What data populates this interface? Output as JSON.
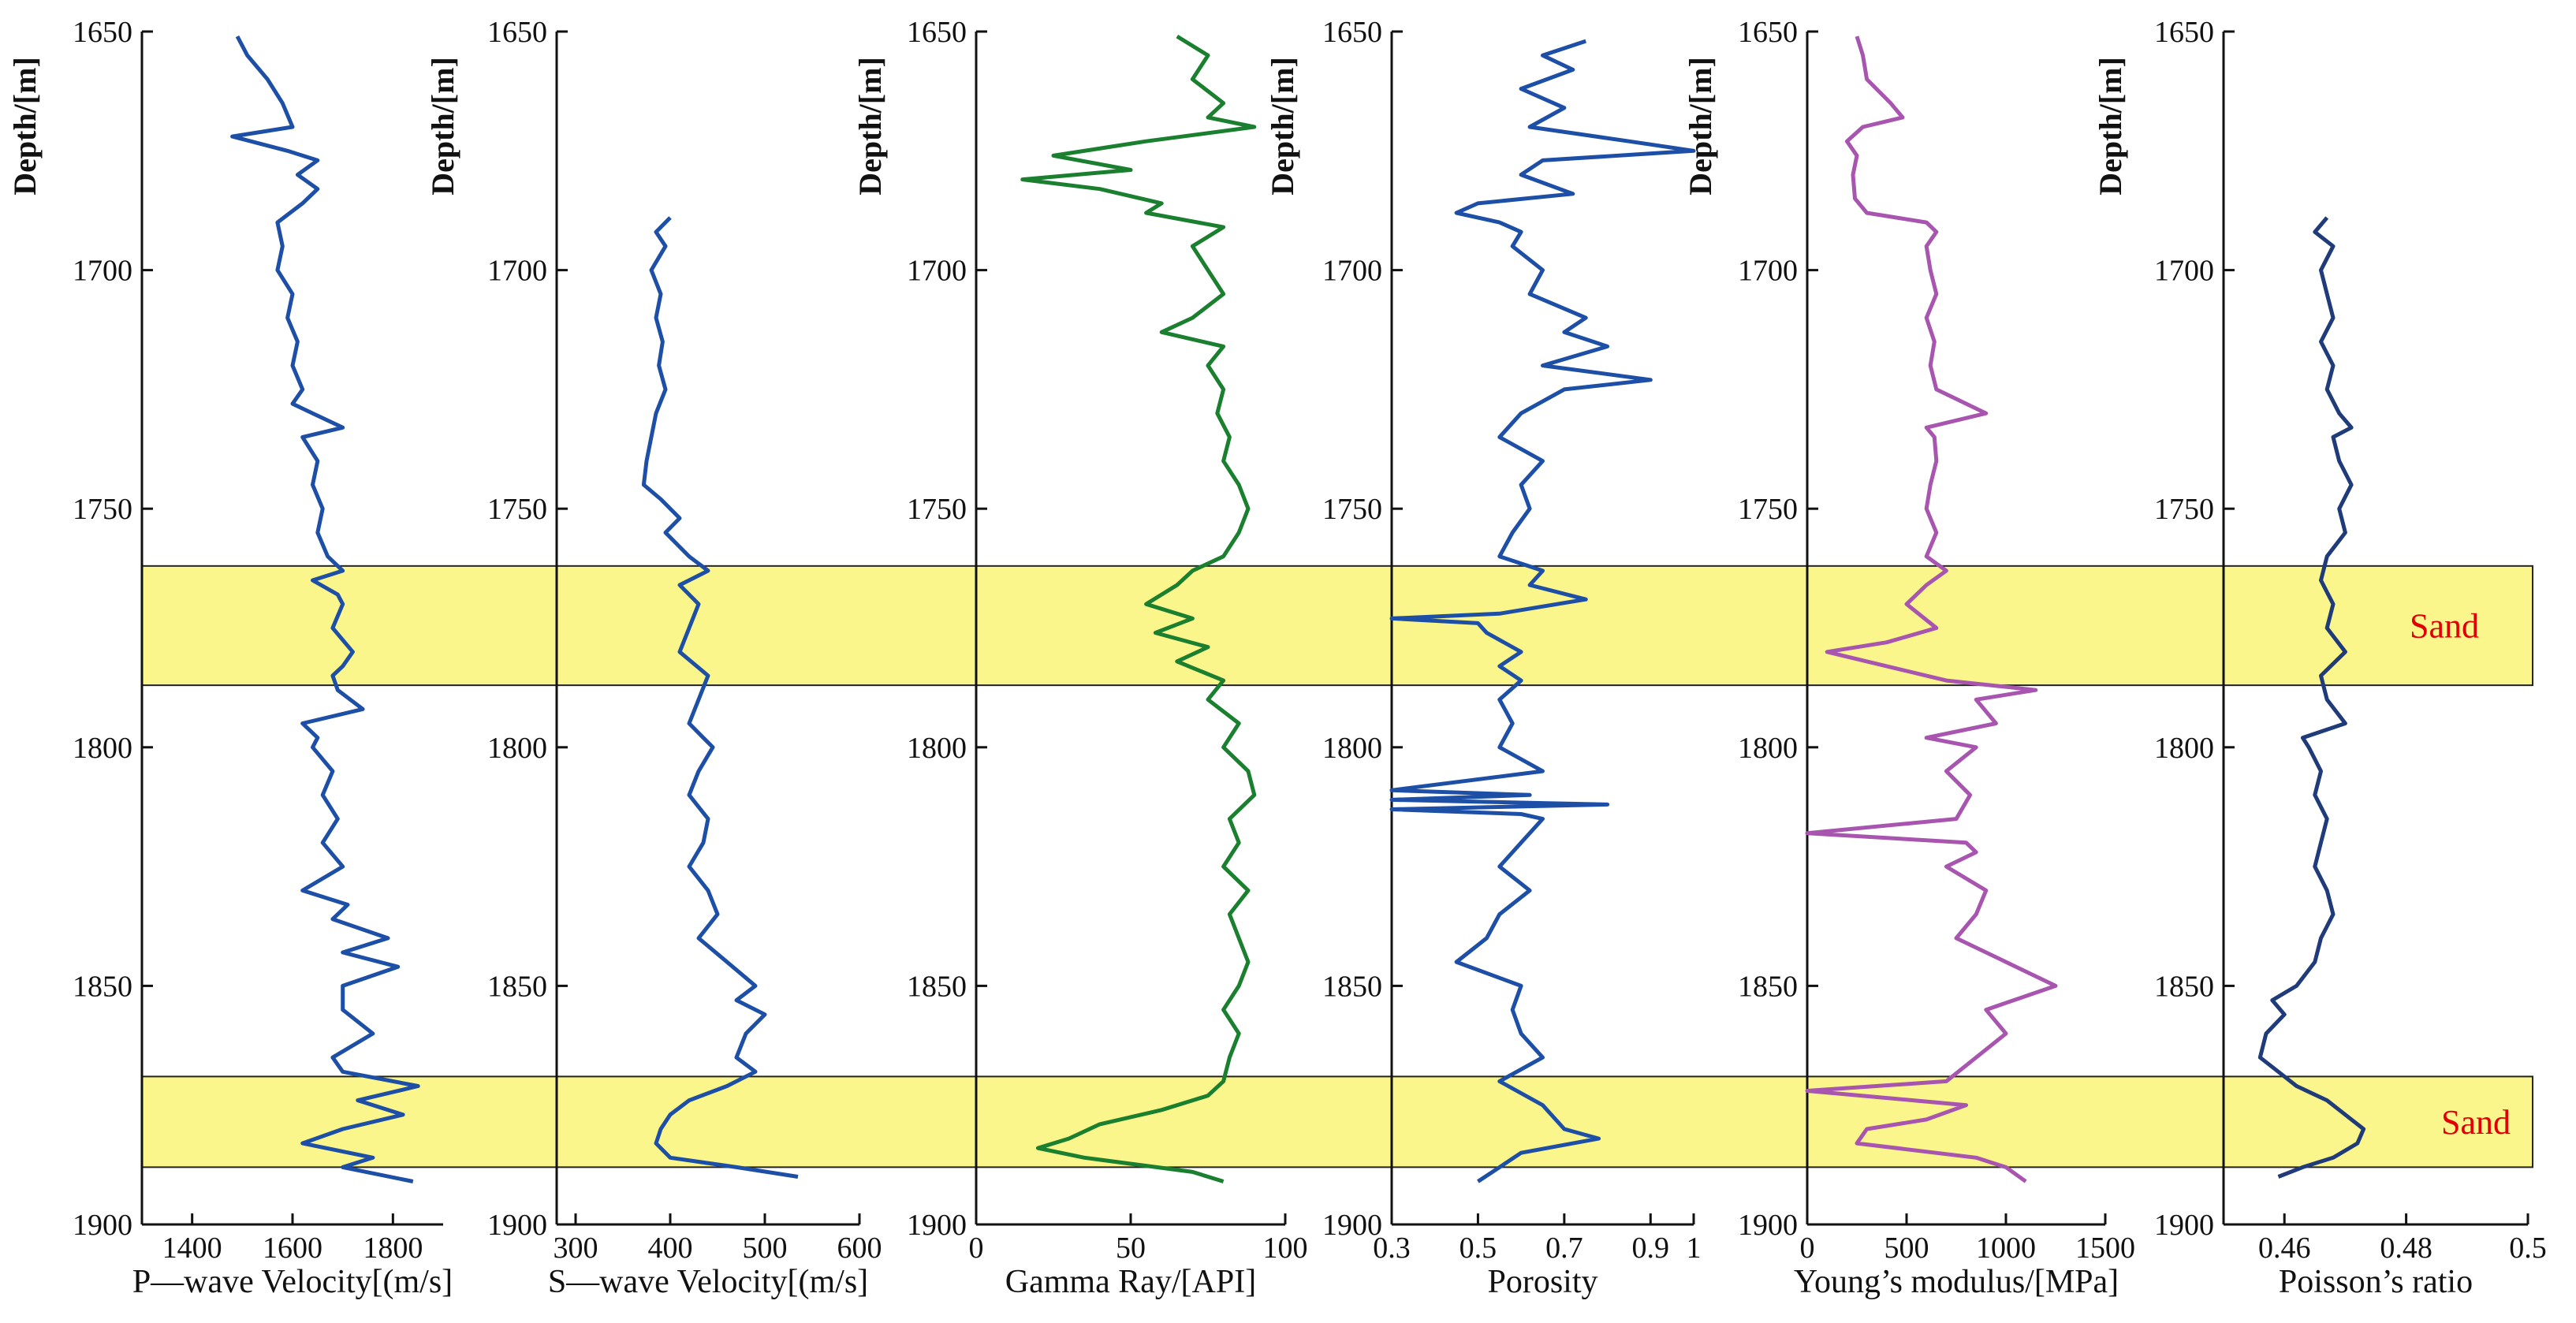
{
  "chart_data": {
    "type": "line",
    "title": "",
    "depth_axis": {
      "label": "Depth/[m]",
      "range": [
        1650,
        1900
      ],
      "ticks": [
        1650,
        1700,
        1750,
        1800,
        1850,
        1900
      ]
    },
    "sand_zones": [
      {
        "label": "Sand",
        "top": 1762,
        "bottom": 1787
      },
      {
        "label": "Sand",
        "top": 1869,
        "bottom": 1888
      }
    ],
    "tracks": [
      {
        "name": "P-wave Velocity",
        "xlabel": "P—wave Velocity[(m/s]",
        "xlim": [
          1300,
          1900
        ],
        "ticks": [
          1400,
          1600,
          1800
        ],
        "color": "#1e4fa6",
        "depths": [
          1651,
          1655,
          1660,
          1665,
          1670,
          1672,
          1675,
          1677,
          1680,
          1683,
          1686,
          1690,
          1695,
          1700,
          1705,
          1710,
          1715,
          1720,
          1725,
          1728,
          1730,
          1733,
          1735,
          1740,
          1745,
          1750,
          1755,
          1760,
          1763,
          1765,
          1768,
          1770,
          1775,
          1780,
          1783,
          1785,
          1788,
          1792,
          1795,
          1798,
          1800,
          1805,
          1810,
          1815,
          1820,
          1825,
          1830,
          1833,
          1836,
          1840,
          1843,
          1846,
          1850,
          1855,
          1860,
          1865,
          1868,
          1871,
          1874,
          1877,
          1880,
          1883,
          1886,
          1888,
          1891
        ],
        "values": [
          1490,
          1510,
          1550,
          1580,
          1600,
          1480,
          1590,
          1650,
          1610,
          1650,
          1620,
          1570,
          1580,
          1570,
          1600,
          1590,
          1610,
          1600,
          1620,
          1600,
          1640,
          1700,
          1620,
          1650,
          1640,
          1660,
          1650,
          1670,
          1700,
          1640,
          1690,
          1700,
          1680,
          1720,
          1700,
          1680,
          1690,
          1740,
          1620,
          1650,
          1640,
          1680,
          1660,
          1690,
          1660,
          1700,
          1620,
          1710,
          1680,
          1790,
          1700,
          1810,
          1700,
          1700,
          1760,
          1680,
          1700,
          1850,
          1730,
          1820,
          1700,
          1620,
          1760,
          1700,
          1840
        ]
      },
      {
        "name": "S-wave Velocity",
        "xlabel": "S—wave Velocity[(m/s]",
        "xlim": [
          280,
          600
        ],
        "ticks": [
          300,
          400,
          500,
          600
        ],
        "color": "#1e4fa6",
        "depths": [
          1689,
          1692,
          1695,
          1700,
          1705,
          1710,
          1715,
          1720,
          1725,
          1730,
          1735,
          1740,
          1745,
          1748,
          1752,
          1755,
          1760,
          1763,
          1766,
          1770,
          1775,
          1780,
          1785,
          1790,
          1795,
          1800,
          1805,
          1810,
          1815,
          1820,
          1825,
          1830,
          1835,
          1840,
          1845,
          1850,
          1853,
          1856,
          1860,
          1865,
          1868,
          1871,
          1874,
          1877,
          1880,
          1883,
          1886,
          1888,
          1890
        ],
        "values": [
          400,
          385,
          395,
          380,
          390,
          385,
          392,
          388,
          395,
          385,
          380,
          375,
          372,
          390,
          410,
          395,
          420,
          440,
          410,
          430,
          420,
          410,
          440,
          430,
          420,
          445,
          430,
          420,
          440,
          435,
          420,
          440,
          450,
          430,
          460,
          490,
          470,
          500,
          480,
          470,
          490,
          460,
          420,
          400,
          390,
          385,
          400,
          470,
          535
        ]
      },
      {
        "name": "Gamma Ray",
        "xlabel": "Gamma Ray/[API]",
        "xlim": [
          0,
          100
        ],
        "ticks": [
          0,
          50,
          100
        ],
        "color": "#1a7f2e",
        "depths": [
          1651,
          1655,
          1660,
          1665,
          1668,
          1670,
          1673,
          1676,
          1679,
          1681,
          1683,
          1686,
          1688,
          1691,
          1695,
          1700,
          1705,
          1710,
          1713,
          1716,
          1720,
          1725,
          1730,
          1735,
          1740,
          1745,
          1750,
          1755,
          1760,
          1763,
          1766,
          1770,
          1773,
          1776,
          1779,
          1782,
          1786,
          1790,
          1795,
          1800,
          1805,
          1810,
          1815,
          1820,
          1825,
          1830,
          1835,
          1840,
          1845,
          1850,
          1855,
          1860,
          1865,
          1870,
          1873,
          1876,
          1879,
          1882,
          1884,
          1886,
          1889,
          1891
        ],
        "values": [
          65,
          75,
          70,
          80,
          75,
          90,
          55,
          25,
          50,
          15,
          40,
          60,
          55,
          80,
          70,
          75,
          80,
          70,
          60,
          80,
          75,
          80,
          78,
          82,
          80,
          85,
          88,
          85,
          80,
          70,
          65,
          55,
          70,
          58,
          75,
          65,
          80,
          75,
          85,
          80,
          88,
          90,
          82,
          85,
          80,
          88,
          82,
          85,
          88,
          85,
          80,
          85,
          82,
          80,
          75,
          60,
          40,
          30,
          20,
          35,
          70,
          80
        ]
      },
      {
        "name": "Porosity",
        "xlabel": "Porosity",
        "xlim": [
          0.3,
          1.0
        ],
        "ticks": [
          0.3,
          0.5,
          0.7,
          0.9,
          1.0
        ],
        "tick_labels": [
          "0.3",
          "0.5",
          "0.7",
          "0.9",
          "1"
        ],
        "color": "#1e4fa6",
        "depths": [
          1652,
          1655,
          1658,
          1662,
          1666,
          1670,
          1673,
          1675,
          1677,
          1680,
          1684,
          1686,
          1688,
          1690,
          1692,
          1695,
          1700,
          1705,
          1710,
          1713,
          1716,
          1720,
          1723,
          1725,
          1730,
          1735,
          1740,
          1745,
          1750,
          1755,
          1760,
          1763,
          1766,
          1769,
          1772,
          1773,
          1774,
          1776,
          1780,
          1783,
          1786,
          1790,
          1795,
          1800,
          1805,
          1809,
          1810,
          1811,
          1812,
          1813,
          1814,
          1815,
          1820,
          1825,
          1830,
          1835,
          1840,
          1845,
          1850,
          1855,
          1860,
          1865,
          1870,
          1875,
          1880,
          1882,
          1885,
          1888,
          1891
        ],
        "values": [
          0.75,
          0.65,
          0.72,
          0.6,
          0.7,
          0.62,
          0.85,
          1.0,
          0.65,
          0.6,
          0.72,
          0.5,
          0.45,
          0.55,
          0.6,
          0.58,
          0.65,
          0.62,
          0.75,
          0.7,
          0.8,
          0.65,
          0.9,
          0.7,
          0.6,
          0.55,
          0.65,
          0.6,
          0.62,
          0.58,
          0.55,
          0.65,
          0.62,
          0.75,
          0.55,
          0.3,
          0.5,
          0.52,
          0.6,
          0.55,
          0.6,
          0.55,
          0.58,
          0.55,
          0.65,
          0.3,
          0.62,
          0.3,
          0.8,
          0.3,
          0.6,
          0.65,
          0.6,
          0.55,
          0.62,
          0.55,
          0.52,
          0.45,
          0.6,
          0.58,
          0.6,
          0.65,
          0.55,
          0.65,
          0.7,
          0.78,
          0.6,
          0.55,
          0.5
        ]
      },
      {
        "name": "Young's modulus",
        "xlabel": "Young’s modulus/[MPa]",
        "xlim": [
          0,
          1500
        ],
        "ticks": [
          0,
          500,
          1000,
          1500
        ],
        "color": "#a855b0",
        "depths": [
          1651,
          1655,
          1660,
          1665,
          1668,
          1670,
          1673,
          1676,
          1680,
          1685,
          1688,
          1690,
          1692,
          1695,
          1700,
          1705,
          1710,
          1715,
          1720,
          1725,
          1730,
          1733,
          1735,
          1740,
          1745,
          1750,
          1755,
          1760,
          1763,
          1766,
          1770,
          1775,
          1778,
          1780,
          1782,
          1784,
          1786,
          1788,
          1790,
          1795,
          1798,
          1800,
          1805,
          1810,
          1815,
          1818,
          1820,
          1822,
          1825,
          1830,
          1835,
          1840,
          1845,
          1850,
          1855,
          1860,
          1865,
          1870,
          1872,
          1875,
          1878,
          1880,
          1883,
          1886,
          1888,
          1891
        ],
        "values": [
          250,
          280,
          300,
          420,
          480,
          280,
          200,
          250,
          230,
          240,
          300,
          600,
          650,
          600,
          620,
          650,
          600,
          640,
          620,
          650,
          900,
          600,
          640,
          650,
          620,
          600,
          650,
          600,
          700,
          600,
          500,
          650,
          400,
          100,
          300,
          500,
          700,
          1150,
          850,
          950,
          600,
          850,
          700,
          820,
          750,
          0,
          800,
          850,
          700,
          900,
          850,
          750,
          1000,
          1250,
          900,
          1000,
          850,
          700,
          0,
          800,
          600,
          300,
          250,
          850,
          1000,
          1100
        ]
      },
      {
        "name": "Poisson's ratio",
        "xlabel": "Poisson’s ratio",
        "xlim": [
          0.45,
          0.5
        ],
        "ticks": [
          0.46,
          0.48,
          0.5
        ],
        "color": "#1f3b7a",
        "depths": [
          1689,
          1692,
          1695,
          1700,
          1705,
          1710,
          1715,
          1720,
          1725,
          1730,
          1733,
          1735,
          1740,
          1745,
          1750,
          1755,
          1760,
          1765,
          1770,
          1775,
          1780,
          1785,
          1790,
          1795,
          1798,
          1800,
          1805,
          1810,
          1815,
          1820,
          1825,
          1830,
          1835,
          1840,
          1845,
          1850,
          1853,
          1856,
          1860,
          1865,
          1868,
          1871,
          1874,
          1877,
          1880,
          1883,
          1886,
          1888,
          1890
        ],
        "values": [
          0.467,
          0.465,
          0.468,
          0.466,
          0.467,
          0.468,
          0.466,
          0.468,
          0.467,
          0.469,
          0.471,
          0.468,
          0.469,
          0.471,
          0.469,
          0.47,
          0.467,
          0.466,
          0.468,
          0.467,
          0.47,
          0.466,
          0.467,
          0.47,
          0.463,
          0.464,
          0.466,
          0.465,
          0.467,
          0.466,
          0.465,
          0.467,
          0.468,
          0.466,
          0.465,
          0.462,
          0.458,
          0.46,
          0.457,
          0.456,
          0.459,
          0.462,
          0.467,
          0.47,
          0.473,
          0.472,
          0.468,
          0.463,
          0.459
        ]
      }
    ]
  }
}
